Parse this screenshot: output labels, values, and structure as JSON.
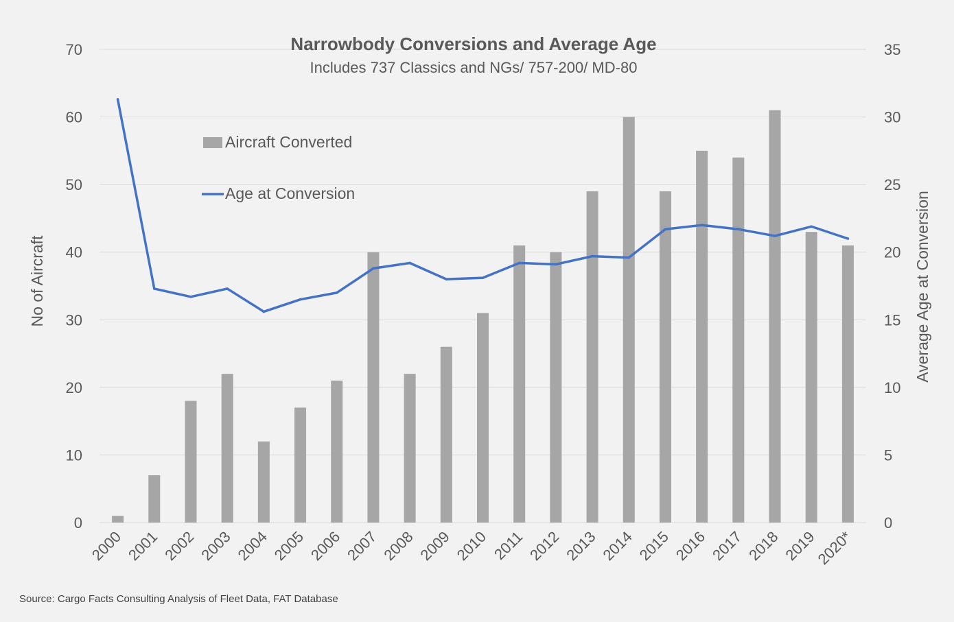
{
  "chart_data": {
    "type": "bar",
    "title": "Narrowbody Conversions and Average Age",
    "subtitle": "Includes 737 Classics and NGs/ 757-200/ MD-80",
    "categories": [
      "2000",
      "2001",
      "2002",
      "2003",
      "2004",
      "2005",
      "2006",
      "2007",
      "2008",
      "2009",
      "2010",
      "2011",
      "2012",
      "2013",
      "2014",
      "2015",
      "2016",
      "2017",
      "2018",
      "2019",
      "2020*"
    ],
    "series": [
      {
        "name": "Aircraft Converted",
        "kind": "bar",
        "axis": "left",
        "color": "#a6a6a6",
        "values": [
          1,
          7,
          18,
          22,
          12,
          17,
          21,
          40,
          22,
          26,
          31,
          41,
          40,
          49,
          60,
          49,
          55,
          54,
          61,
          43,
          41
        ]
      },
      {
        "name": "Age at Conversion",
        "kind": "line",
        "axis": "right",
        "color": "#4472c4",
        "values": [
          31.3,
          17.3,
          16.7,
          17.3,
          15.6,
          16.5,
          17.0,
          18.8,
          19.2,
          18.0,
          18.1,
          19.2,
          19.1,
          19.7,
          19.6,
          21.7,
          22.0,
          21.7,
          21.2,
          21.9,
          21.0
        ]
      }
    ],
    "ylabel": "No of Aircraft",
    "ylim": [
      0,
      70
    ],
    "yticks": [
      "0",
      "10",
      "20",
      "30",
      "40",
      "50",
      "60",
      "70"
    ],
    "y2label": "Average Age at Conversion",
    "y2lim": [
      0,
      35
    ],
    "y2ticks": [
      "0",
      "5",
      "10",
      "15",
      "20",
      "25",
      "30",
      "35"
    ],
    "grid": true,
    "legend": "top-left",
    "source": "Source: Cargo Facts Consulting Analysis of Fleet Data, FAT Database"
  }
}
